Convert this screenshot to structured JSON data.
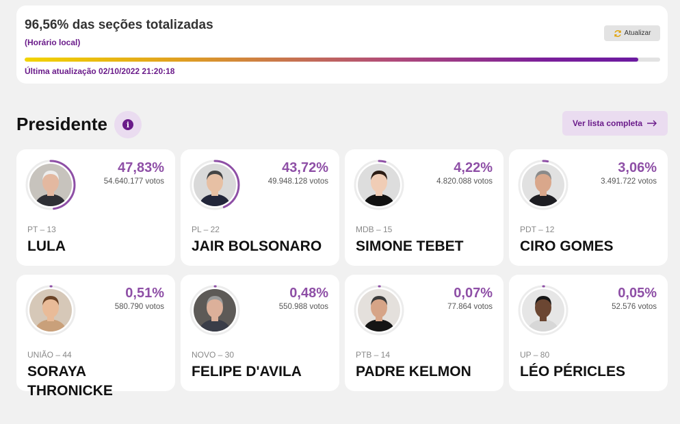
{
  "status": {
    "title": "96,56% das seções totalizadas",
    "subtitle": "(Horário local)",
    "refresh_label": "Atualizar",
    "progress": 0.9656,
    "updated": "Última atualização 02/10/2022 21:20:18"
  },
  "section": {
    "title": "Presidente",
    "info_glyph": "i",
    "list_button": "Ver lista completa"
  },
  "colors": {
    "accent": "#8e4fa6",
    "brand_dark": "#6a1b8a",
    "ring": "#8e4fa6"
  },
  "candidates": [
    {
      "pct": "47,83%",
      "share": 0.4783,
      "votes": "54.640.177 votos",
      "party": "PT – 13",
      "name": "LULA",
      "avatar_bg": "#c7c3bd",
      "skin": "#e3b8a0",
      "hair": "#ededed",
      "suit": "#2e2f35"
    },
    {
      "pct": "43,72%",
      "share": 0.4372,
      "votes": "49.948.128 votos",
      "party": "PL – 22",
      "name": "JAIR BOLSONARO",
      "avatar_bg": "#d9d9d9",
      "skin": "#e7c0a4",
      "hair": "#444",
      "suit": "#22263a"
    },
    {
      "pct": "4,22%",
      "share": 0.0422,
      "votes": "4.820.088 votos",
      "party": "MDB – 15",
      "name": "SIMONE TEBET",
      "avatar_bg": "#dddddd",
      "skin": "#f0cdb6",
      "hair": "#2b1c14",
      "suit": "#111"
    },
    {
      "pct": "3,06%",
      "share": 0.0306,
      "votes": "3.491.722 votos",
      "party": "PDT – 12",
      "name": "CIRO GOMES",
      "avatar_bg": "#e1e1e1",
      "skin": "#d9a78b",
      "hair": "#8a8a8a",
      "suit": "#1d1d22"
    },
    {
      "pct": "0,51%",
      "share": 0.0051,
      "votes": "580.790 votos",
      "party": "UNIÃO – 44",
      "name": "SORAYA THRONICKE",
      "avatar_bg": "#d6c8b8",
      "skin": "#e9bb98",
      "hair": "#6b4326",
      "suit": "#c9a07a"
    },
    {
      "pct": "0,48%",
      "share": 0.0048,
      "votes": "550.988 votos",
      "party": "NOVO – 30",
      "name": "FELIPE D'AVILA",
      "avatar_bg": "#5d5a57",
      "skin": "#dcb09a",
      "hair": "#9a9a9a",
      "suit": "#3a3d48"
    },
    {
      "pct": "0,07%",
      "share": 0.0007,
      "votes": "77.864 votos",
      "party": "PTB – 14",
      "name": "PADRE KELMON",
      "avatar_bg": "#e4e0dc",
      "skin": "#d6a487",
      "hair": "#3b3b3b",
      "suit": "#151515"
    },
    {
      "pct": "0,05%",
      "share": 0.0005,
      "votes": "52.576 votos",
      "party": "UP – 80",
      "name": "LÉO PÉRICLES",
      "avatar_bg": "#e6e6e6",
      "skin": "#6b4632",
      "hair": "#161616",
      "suit": "#d7d7d7"
    }
  ]
}
